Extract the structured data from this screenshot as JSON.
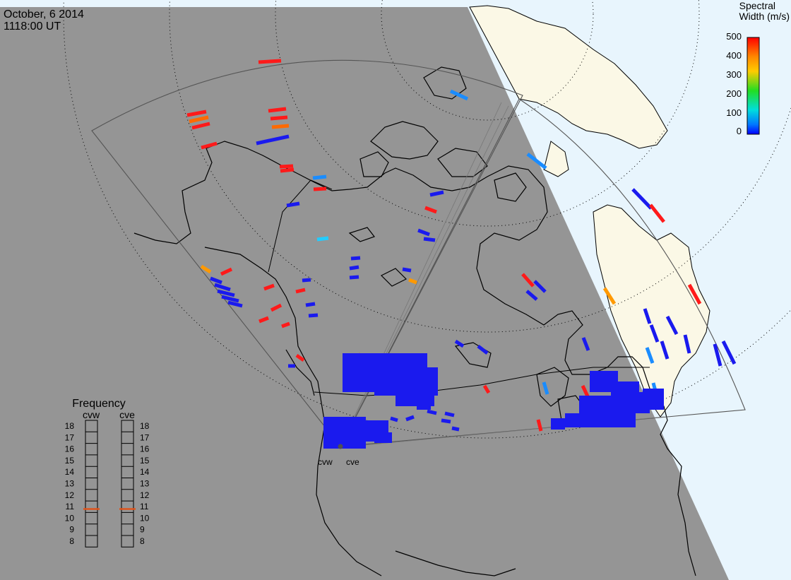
{
  "header": {
    "date": "October, 6 2014",
    "time": "1118:00 UT"
  },
  "colorbar": {
    "title_line1": "Spectral",
    "title_line2": "Width (m/s)",
    "ticks": [
      "500",
      "400",
      "300",
      "200",
      "100",
      "0"
    ]
  },
  "frequency_panel": {
    "title": "Frequency",
    "radar_left": "cvw",
    "radar_right": "cve",
    "scale": [
      "18",
      "17",
      "16",
      "15",
      "14",
      "13",
      "12",
      "11",
      "10",
      "9",
      "8"
    ],
    "cvw_value_mhz": 10.8,
    "cve_value_mhz": 10.8
  },
  "radar_sites": {
    "left_label": "cvw",
    "right_label": "cve"
  },
  "colors": {
    "night": "#959595",
    "day_land": "#fbf8e6",
    "day_ocean": "#e8f5fd",
    "marker": "#e0541c"
  }
}
